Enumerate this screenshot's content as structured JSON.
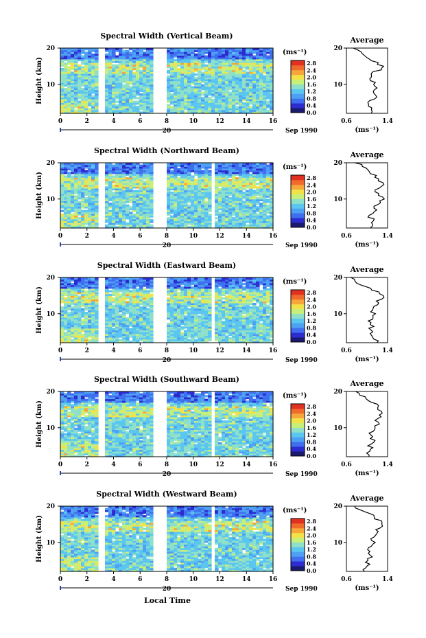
{
  "figure": {
    "x_axis_label": "Local Time",
    "date_label": "20",
    "month_label": "Sep 1990",
    "avg_title": "Average",
    "unit": "(ms⁻¹)",
    "height_label": "Height (km)"
  },
  "colors": {
    "scale": [
      "#1a1a6e",
      "#2c2ccf",
      "#3f6ff0",
      "#4ea0f2",
      "#5bc6f0",
      "#8fe0c8",
      "#c8ef7a",
      "#f2e24a",
      "#f6a63a",
      "#f06a2c",
      "#e03020"
    ]
  },
  "chart_data": [
    {
      "type": "heatmap",
      "title": "Spectral Width (Vertical Beam)",
      "ylabel": "Height (km)",
      "ylim": [
        2,
        20
      ],
      "xlim": [
        0,
        16
      ],
      "x_ticks": [
        0,
        2,
        4,
        6,
        8,
        10,
        12,
        14,
        16
      ],
      "x_tick_labels": [
        "0",
        "2",
        "4",
        "6",
        "8",
        "10",
        "12",
        "14",
        "16"
      ],
      "y_ticks": [
        10,
        20
      ],
      "colorbar": {
        "unit": "(ms⁻¹)",
        "range": [
          0,
          2.8
        ],
        "tick_labels": [
          "2.8",
          "2.4",
          "2.0",
          "1.6",
          "1.2",
          "0.8",
          "0.4",
          "0.0"
        ]
      },
      "data_gaps_local_time": [
        [
          2.8,
          3.4
        ],
        [
          6.9,
          7.9
        ]
      ],
      "average_profile": {
        "xlabel": "(ms⁻¹)",
        "xlim": [
          0.6,
          1.4
        ],
        "x_tick_labels": [
          "0.6",
          "1.4"
        ],
        "ylim": [
          2,
          20
        ],
        "y_tick_labels": [
          "10",
          "20"
        ],
        "height_km": [
          2,
          3,
          4,
          5,
          6,
          7,
          8,
          9,
          10,
          11,
          12,
          13,
          14,
          15,
          16,
          17,
          18,
          19,
          20
        ],
        "values": [
          1.05,
          1.1,
          1.0,
          1.05,
          1.15,
          1.2,
          1.1,
          1.2,
          1.15,
          1.1,
          1.05,
          1.1,
          1.25,
          1.3,
          1.2,
          1.05,
          0.95,
          0.85,
          0.75
        ]
      }
    },
    {
      "type": "heatmap",
      "title": "Spectral Width (Northward Beam)",
      "ylabel": "Height (km)",
      "ylim": [
        2,
        20
      ],
      "xlim": [
        0,
        16
      ],
      "x_ticks": [
        0,
        2,
        4,
        6,
        8,
        10,
        12,
        14,
        16
      ],
      "x_tick_labels": [
        "0",
        "2",
        "4",
        "6",
        "8",
        "10",
        "12",
        "14",
        "16"
      ],
      "y_ticks": [
        10,
        20
      ],
      "colorbar": {
        "unit": "(ms⁻¹)",
        "range": [
          0,
          2.8
        ],
        "tick_labels": [
          "2.8",
          "2.4",
          "2.0",
          "1.6",
          "1.2",
          "0.8",
          "0.4",
          "0.0"
        ]
      },
      "data_gaps_local_time": [
        [
          2.8,
          3.4
        ],
        [
          6.9,
          7.9
        ],
        [
          11.4,
          11.7
        ]
      ],
      "average_profile": {
        "xlabel": "(ms⁻¹)",
        "xlim": [
          0.6,
          1.4
        ],
        "x_tick_labels": [
          "0.6",
          "1.4"
        ],
        "ylim": [
          2,
          20
        ],
        "y_tick_labels": [
          "10",
          "20"
        ],
        "height_km": [
          2,
          3,
          4,
          5,
          6,
          7,
          8,
          9,
          10,
          11,
          12,
          13,
          14,
          15,
          16,
          17,
          18,
          19,
          20
        ],
        "values": [
          1.05,
          1.1,
          1.15,
          1.05,
          1.1,
          1.2,
          1.15,
          1.25,
          1.3,
          1.2,
          1.15,
          1.25,
          1.3,
          1.25,
          1.15,
          1.1,
          1.05,
          0.9,
          0.8
        ]
      }
    },
    {
      "type": "heatmap",
      "title": "Spectral Width (Eastward Beam)",
      "ylabel": "Height (km)",
      "ylim": [
        2,
        20
      ],
      "xlim": [
        0,
        16
      ],
      "x_ticks": [
        0,
        2,
        4,
        6,
        8,
        10,
        12,
        14,
        16
      ],
      "x_tick_labels": [
        "0",
        "2",
        "4",
        "6",
        "8",
        "10",
        "12",
        "14",
        "16"
      ],
      "y_ticks": [
        10,
        20
      ],
      "colorbar": {
        "unit": "(ms⁻¹)",
        "range": [
          0,
          2.8
        ],
        "tick_labels": [
          "2.8",
          "2.4",
          "2.0",
          "1.6",
          "1.2",
          "0.8",
          "0.4",
          "0.0"
        ]
      },
      "data_gaps_local_time": [
        [
          2.8,
          3.4
        ],
        [
          6.9,
          7.9
        ],
        [
          11.4,
          11.7
        ]
      ],
      "average_profile": {
        "xlabel": "(ms⁻¹)",
        "xlim": [
          0.6,
          1.4
        ],
        "x_tick_labels": [
          "0.6",
          "1.4"
        ],
        "ylim": [
          2,
          20
        ],
        "y_tick_labels": [
          "10",
          "20"
        ],
        "height_km": [
          2,
          3,
          4,
          5,
          6,
          7,
          8,
          9,
          10,
          11,
          12,
          13,
          14,
          15,
          16,
          17,
          18,
          19,
          20
        ],
        "values": [
          1.2,
          1.15,
          1.05,
          1.1,
          1.05,
          1.1,
          1.05,
          1.1,
          1.15,
          1.1,
          1.15,
          1.2,
          1.25,
          1.3,
          1.2,
          1.05,
          0.9,
          0.8,
          0.7
        ]
      }
    },
    {
      "type": "heatmap",
      "title": "Spectral Width (Southward Beam)",
      "ylabel": "Height (km)",
      "ylim": [
        2,
        20
      ],
      "xlim": [
        0,
        16
      ],
      "x_ticks": [
        0,
        2,
        4,
        6,
        8,
        10,
        12,
        14,
        16
      ],
      "x_tick_labels": [
        "0",
        "2",
        "4",
        "6",
        "8",
        "10",
        "12",
        "14",
        "16"
      ],
      "y_ticks": [
        10,
        20
      ],
      "colorbar": {
        "unit": "(ms⁻¹)",
        "range": [
          0,
          2.8
        ],
        "tick_labels": [
          "2.8",
          "2.4",
          "2.0",
          "1.6",
          "1.2",
          "0.8",
          "0.4",
          "0.0"
        ]
      },
      "data_gaps_local_time": [
        [
          2.8,
          3.4
        ],
        [
          6.9,
          7.9
        ],
        [
          11.4,
          11.7
        ]
      ],
      "average_profile": {
        "xlabel": "(ms⁻¹)",
        "xlim": [
          0.6,
          1.4
        ],
        "x_tick_labels": [
          "0.6",
          "1.4"
        ],
        "ylim": [
          2,
          20
        ],
        "y_tick_labels": [
          "10",
          "20"
        ],
        "height_km": [
          2,
          3,
          4,
          5,
          6,
          7,
          8,
          9,
          10,
          11,
          12,
          13,
          14,
          15,
          16,
          17,
          18,
          19,
          20
        ],
        "values": [
          1.05,
          1.0,
          1.1,
          1.05,
          1.15,
          1.1,
          1.05,
          1.1,
          1.15,
          1.2,
          1.15,
          1.25,
          1.3,
          1.25,
          1.2,
          1.1,
          1.0,
          0.85,
          0.75
        ]
      }
    },
    {
      "type": "heatmap",
      "title": "Spectral Width (Westward Beam)",
      "ylabel": "Height (km)",
      "ylim": [
        2,
        20
      ],
      "xlim": [
        0,
        16
      ],
      "x_ticks": [
        0,
        2,
        4,
        6,
        8,
        10,
        12,
        14,
        16
      ],
      "x_tick_labels": [
        "0",
        "2",
        "4",
        "6",
        "8",
        "10",
        "12",
        "14",
        "16"
      ],
      "y_ticks": [
        10,
        20
      ],
      "colorbar": {
        "unit": "(ms⁻¹)",
        "range": [
          0,
          2.8
        ],
        "tick_labels": [
          "2.8",
          "2.4",
          "2.0",
          "1.6",
          "1.2",
          "0.8",
          "0.4",
          "0.0"
        ]
      },
      "data_gaps_local_time": [
        [
          2.8,
          3.4
        ],
        [
          6.9,
          7.9
        ],
        [
          11.4,
          11.7
        ]
      ],
      "average_profile": {
        "xlabel": "(ms⁻¹)",
        "xlim": [
          0.6,
          1.4
        ],
        "x_tick_labels": [
          "0.6",
          "1.4"
        ],
        "ylim": [
          2,
          20
        ],
        "y_tick_labels": [
          "10",
          "20"
        ],
        "height_km": [
          2,
          3,
          4,
          5,
          6,
          7,
          8,
          9,
          10,
          11,
          12,
          13,
          14,
          15,
          16,
          17,
          18,
          19,
          20
        ],
        "values": [
          0.95,
          1.0,
          1.05,
          1.0,
          1.1,
          1.05,
          1.0,
          1.1,
          1.15,
          1.1,
          1.15,
          1.2,
          1.25,
          1.3,
          1.25,
          1.15,
          1.05,
          0.9,
          0.75
        ]
      }
    }
  ]
}
